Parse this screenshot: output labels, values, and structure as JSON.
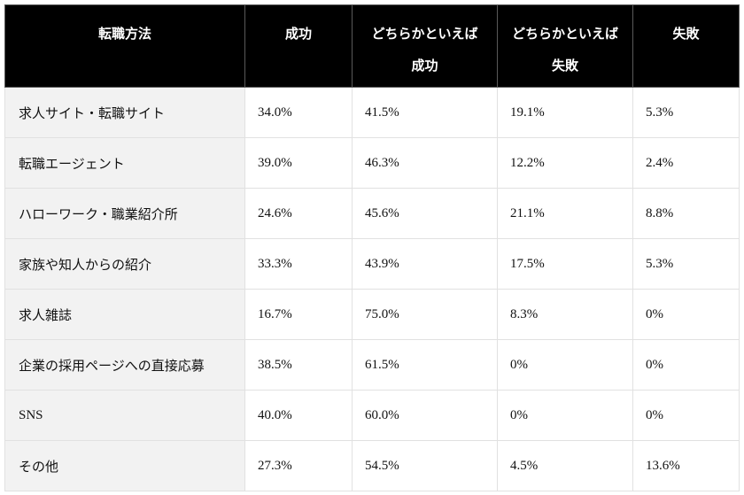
{
  "table": {
    "headers": [
      {
        "lines": [
          "転職方法"
        ]
      },
      {
        "lines": [
          "成功"
        ]
      },
      {
        "lines": [
          "どちらかといえば",
          "成功"
        ]
      },
      {
        "lines": [
          "どちらかといえば",
          "失敗"
        ]
      },
      {
        "lines": [
          "失敗"
        ]
      }
    ],
    "rows": [
      {
        "method": "求人サイト・転職サイト",
        "success": "34.0%",
        "somewhat_success": "41.5%",
        "somewhat_failure": "19.1%",
        "failure": "5.3%"
      },
      {
        "method": "転職エージェント",
        "success": "39.0%",
        "somewhat_success": "46.3%",
        "somewhat_failure": "12.2%",
        "failure": "2.4%"
      },
      {
        "method": "ハローワーク・職業紹介所",
        "success": "24.6%",
        "somewhat_success": "45.6%",
        "somewhat_failure": "21.1%",
        "failure": "8.8%"
      },
      {
        "method": "家族や知人からの紹介",
        "success": "33.3%",
        "somewhat_success": "43.9%",
        "somewhat_failure": "17.5%",
        "failure": "5.3%"
      },
      {
        "method": "求人雑誌",
        "success": "16.7%",
        "somewhat_success": "75.0%",
        "somewhat_failure": "8.3%",
        "failure": "0%"
      },
      {
        "method": "企業の採用ページへの直接応募",
        "success": "38.5%",
        "somewhat_success": "61.5%",
        "somewhat_failure": "0%",
        "failure": "0%"
      },
      {
        "method": "SNS",
        "success": "40.0%",
        "somewhat_success": "60.0%",
        "somewhat_failure": "0%",
        "failure": "0%"
      },
      {
        "method": "その他",
        "success": "27.3%",
        "somewhat_success": "54.5%",
        "somewhat_failure": "4.5%",
        "failure": "13.6%"
      }
    ]
  },
  "colors": {
    "header_bg": "#000000",
    "header_text": "#ffffff",
    "first_column_bg": "#f2f2f2",
    "cell_bg": "#ffffff",
    "border": "#e1e1e1"
  }
}
